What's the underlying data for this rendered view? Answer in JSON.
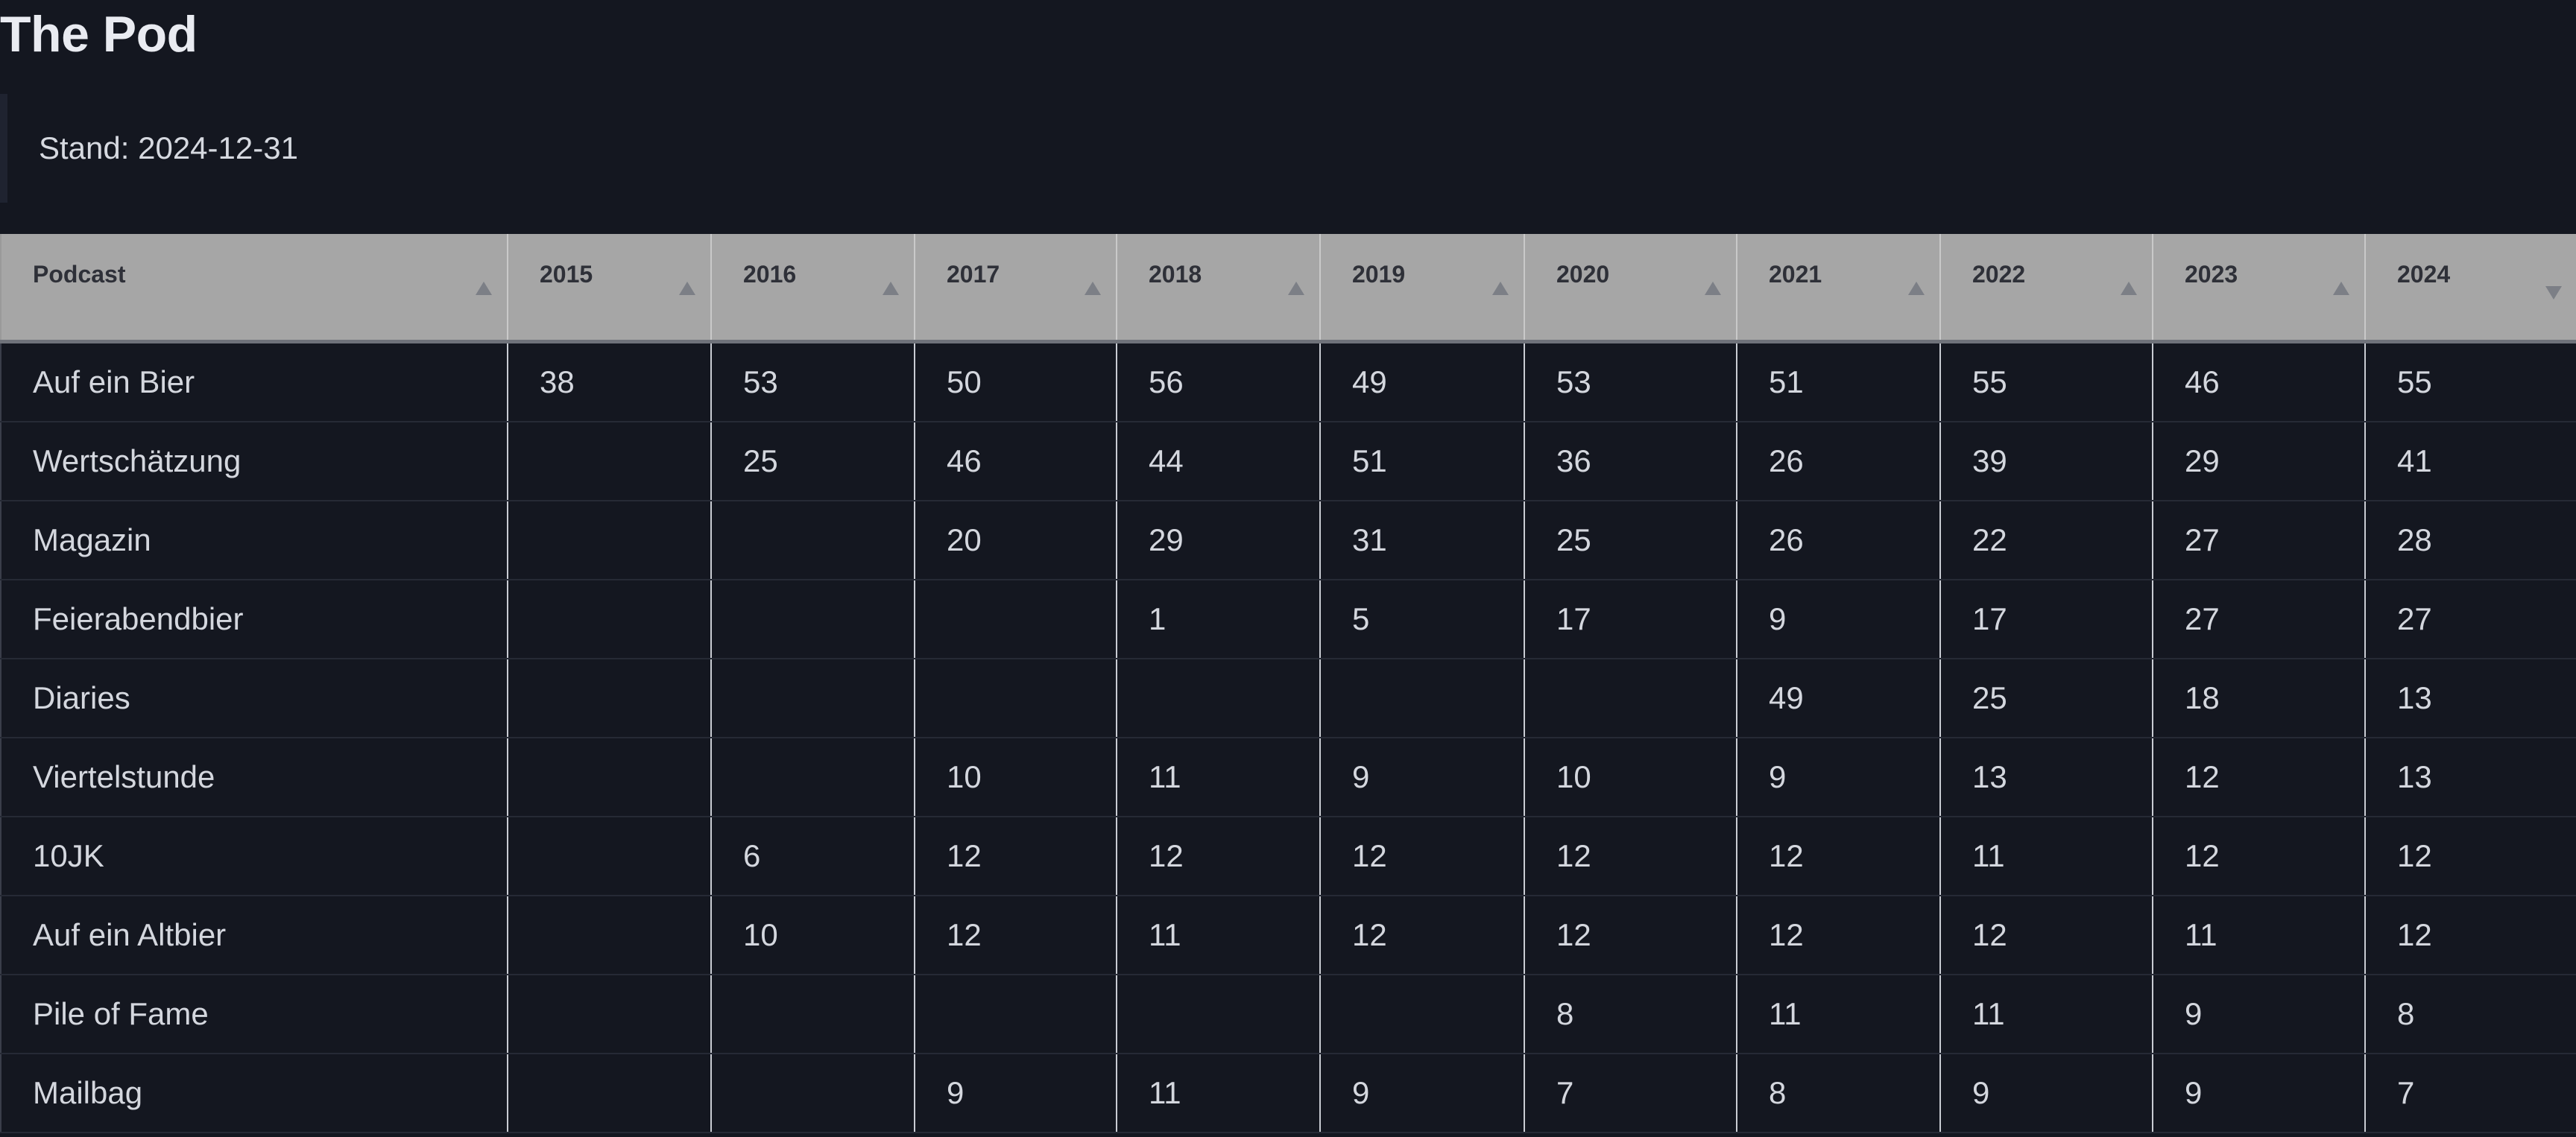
{
  "page": {
    "title": "The Pod",
    "stand": "Stand: 2024-12-31"
  },
  "table": {
    "columns": [
      {
        "label": "Podcast",
        "sort": "up"
      },
      {
        "label": "2015",
        "sort": "up"
      },
      {
        "label": "2016",
        "sort": "up"
      },
      {
        "label": "2017",
        "sort": "up"
      },
      {
        "label": "2018",
        "sort": "up"
      },
      {
        "label": "2019",
        "sort": "up"
      },
      {
        "label": "2020",
        "sort": "up"
      },
      {
        "label": "2021",
        "sort": "up"
      },
      {
        "label": "2022",
        "sort": "up"
      },
      {
        "label": "2023",
        "sort": "up"
      },
      {
        "label": "2024",
        "sort": "down"
      }
    ],
    "rows": [
      [
        "Auf ein Bier",
        "38",
        "53",
        "50",
        "56",
        "49",
        "53",
        "51",
        "55",
        "46",
        "55"
      ],
      [
        "Wertschätzung",
        "",
        "25",
        "46",
        "44",
        "51",
        "36",
        "26",
        "39",
        "29",
        "41"
      ],
      [
        "Magazin",
        "",
        "",
        "20",
        "29",
        "31",
        "25",
        "26",
        "22",
        "27",
        "28"
      ],
      [
        "Feierabendbier",
        "",
        "",
        "",
        "1",
        "5",
        "17",
        "9",
        "17",
        "27",
        "27"
      ],
      [
        "Diaries",
        "",
        "",
        "",
        "",
        "",
        "",
        "49",
        "25",
        "18",
        "13"
      ],
      [
        "Viertelstunde",
        "",
        "",
        "10",
        "11",
        "9",
        "10",
        "9",
        "13",
        "12",
        "13"
      ],
      [
        "10JK",
        "",
        "6",
        "12",
        "12",
        "12",
        "12",
        "12",
        "11",
        "12",
        "12"
      ],
      [
        "Auf ein Altbier",
        "",
        "10",
        "12",
        "11",
        "12",
        "12",
        "12",
        "12",
        "11",
        "12"
      ],
      [
        "Pile of Fame",
        "",
        "",
        "",
        "",
        "",
        "8",
        "11",
        "11",
        "9",
        "8"
      ],
      [
        "Mailbag",
        "",
        "",
        "9",
        "11",
        "9",
        "7",
        "8",
        "9",
        "9",
        "7"
      ]
    ]
  }
}
